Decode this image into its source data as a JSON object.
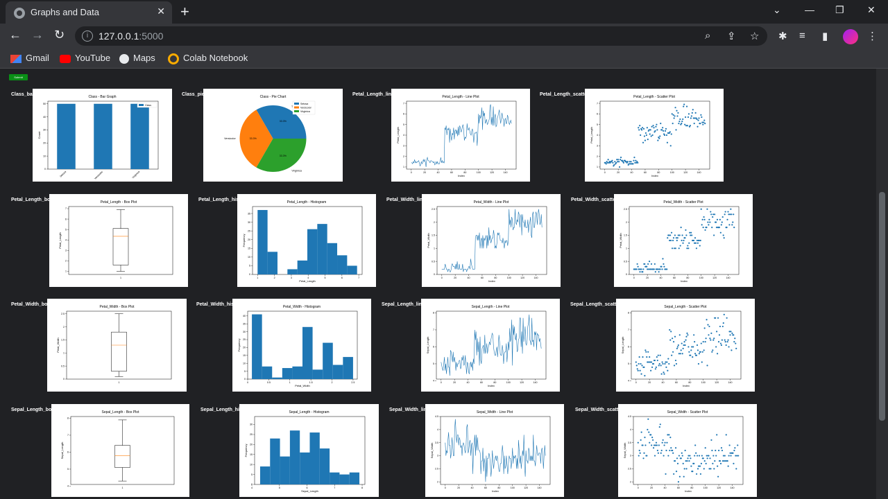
{
  "browser": {
    "tab_title": "Graphs and Data",
    "url_host": "127.0.0.1",
    "url_port": ":5000",
    "new_tab": "+",
    "close": "✕",
    "bookmarks": [
      {
        "label": "Gmail",
        "icon": "gmail-icon",
        "color": "#ea4335"
      },
      {
        "label": "YouTube",
        "icon": "youtube-icon",
        "color": "#ff0000"
      },
      {
        "label": "Maps",
        "icon": "maps-icon",
        "color": "#e8eaed"
      },
      {
        "label": "Colab Notebook",
        "icon": "colab-icon",
        "color": "#f9ab00"
      }
    ]
  },
  "page": {
    "submit_label": "Submit",
    "plot_color": "#1f77b4",
    "plots": [
      {
        "id": "Class_bar",
        "label": "Class_bar",
        "title": "Class - Bar Graph",
        "type": "bar",
        "categories": [
          "Setosa",
          "Versicolor",
          "Virginica"
        ],
        "values": [
          50,
          50,
          50
        ],
        "ylabel": "Count",
        "legend": "Class",
        "yticks": [
          0,
          10,
          20,
          30,
          40,
          50
        ],
        "ylim": [
          0,
          52
        ]
      },
      {
        "id": "Class_pie",
        "label": "Class_pie",
        "title": "Class - Pie Chart",
        "type": "pie",
        "slices": [
          {
            "name": "Setosa",
            "pct": "33.3%",
            "value": 33.3,
            "color": "#1f77b4"
          },
          {
            "name": "Versicolor",
            "pct": "33.3%",
            "value": 33.3,
            "color": "#ff7f0e"
          },
          {
            "name": "Virginica",
            "pct": "33.3%",
            "value": 33.3,
            "color": "#2ca02c"
          }
        ]
      },
      {
        "id": "Petal_Length_line",
        "label": "Petal_Length_line",
        "title": "Petal_Length - Line Plot",
        "type": "line",
        "xlabel": "Index",
        "ylabel": "Petal_Length",
        "ylim": [
          0.8,
          7.2
        ],
        "yticks": [
          1,
          2,
          3,
          4,
          5,
          6,
          7
        ],
        "xticks": [
          0,
          20,
          40,
          60,
          80,
          100,
          120,
          140
        ],
        "xlim": [
          -7,
          156
        ],
        "series": "PL"
      },
      {
        "id": "Petal_Length_scatter",
        "label": "Petal_Length_scatter",
        "title": "Petal_Length - Scatter Plot",
        "type": "scatter",
        "xlabel": "Index",
        "ylabel": "Petal_Length",
        "ylim": [
          0.8,
          7.2
        ],
        "yticks": [
          1,
          2,
          3,
          4,
          5,
          6,
          7
        ],
        "xticks": [
          0,
          20,
          40,
          60,
          80,
          100,
          120,
          140
        ],
        "xlim": [
          -7,
          156
        ],
        "series": "PL"
      },
      {
        "id": "Petal_Length_box",
        "label": "Petal_Length_box",
        "title": "Petal_Length - Box Plot",
        "type": "box",
        "xlabel": "",
        "ylabel": "Petal_Length",
        "ylim": [
          0.7,
          7.2
        ],
        "yticks": [
          1,
          2,
          3,
          4,
          5,
          6,
          7
        ],
        "box": {
          "min": 1.0,
          "q1": 1.6,
          "med": 4.35,
          "q3": 5.1,
          "max": 6.9,
          "out": []
        }
      },
      {
        "id": "Petal_Length_hist",
        "label": "Petal_Length_hist",
        "title": "Petal_Length - Histogram",
        "type": "hist",
        "xlabel": "Petal_Length",
        "ylabel": "Frequency",
        "ylim": [
          0,
          39
        ],
        "yticks": [
          0,
          5,
          10,
          15,
          20,
          25,
          30,
          35
        ],
        "xticks": [
          1,
          2,
          3,
          4,
          5,
          6,
          7
        ],
        "xlim": [
          0.7,
          7.2
        ],
        "bins": {
          "start": 1.0,
          "width": 0.59,
          "counts": [
            37,
            13,
            0,
            3,
            8,
            26,
            29,
            18,
            11,
            5
          ]
        }
      },
      {
        "id": "Petal_Width_line",
        "label": "Petal_Width_line",
        "title": "Petal_Width - Line Plot",
        "type": "line",
        "xlabel": "Index",
        "ylabel": "Petal_Width",
        "ylim": [
          0,
          2.6
        ],
        "yticks": [
          0.0,
          0.5,
          1.0,
          1.5,
          2.0,
          2.5
        ],
        "xticks": [
          0,
          20,
          40,
          60,
          80,
          100,
          120,
          140
        ],
        "xlim": [
          -7,
          156
        ],
        "series": "PW"
      },
      {
        "id": "Petal_Width_scatter",
        "label": "Petal_Width_scatter",
        "title": "Petal_Width - Scatter Plot",
        "type": "scatter",
        "xlabel": "Index",
        "ylabel": "Petal_Width",
        "ylim": [
          0,
          2.6
        ],
        "yticks": [
          0.0,
          0.5,
          1.0,
          1.5,
          2.0,
          2.5
        ],
        "xticks": [
          0,
          20,
          40,
          60,
          80,
          100,
          120,
          140
        ],
        "xlim": [
          -7,
          156
        ],
        "series": "PW"
      },
      {
        "id": "Petal_Width_box",
        "label": "Petal_Width_box",
        "title": "Petal_Width - Box Plot",
        "type": "box",
        "xlabel": "",
        "ylabel": "Petal_Width",
        "ylim": [
          0,
          2.6
        ],
        "yticks": [
          0.0,
          0.5,
          1.0,
          1.5,
          2.0,
          2.5
        ],
        "box": {
          "min": 0.1,
          "q1": 0.3,
          "med": 1.3,
          "q3": 1.8,
          "max": 2.5,
          "out": []
        }
      },
      {
        "id": "Petal_Width_hist",
        "label": "Petal_Width_hist",
        "title": "Petal_Width - Histogram",
        "type": "hist",
        "xlabel": "Petal_Width",
        "ylabel": "Frequency",
        "ylim": [
          0,
          43
        ],
        "yticks": [
          0,
          5,
          10,
          15,
          20,
          25,
          30,
          35,
          40
        ],
        "xticks": [
          0.0,
          0.5,
          1.0,
          1.5,
          2.0,
          2.5
        ],
        "xlim": [
          0,
          2.6
        ],
        "bins": {
          "start": 0.1,
          "width": 0.24,
          "counts": [
            41,
            8,
            1,
            7,
            8,
            33,
            6,
            23,
            9,
            14
          ]
        }
      },
      {
        "id": "Sepal_Length_line",
        "label": "Sepal_Length_line",
        "title": "Sepal_Length - Line Plot",
        "type": "line",
        "xlabel": "Index",
        "ylabel": "Sepal_Length",
        "ylim": [
          4.1,
          8.1
        ],
        "yticks": [
          4,
          5,
          6,
          7,
          8
        ],
        "xticks": [
          0,
          20,
          40,
          60,
          80,
          100,
          120,
          140
        ],
        "xlim": [
          -7,
          156
        ],
        "series": "SL"
      },
      {
        "id": "Sepal_Length_scatter",
        "label": "Sepal_Length_scatter",
        "title": "Sepal_Length - Scatter Plot",
        "type": "scatter",
        "xlabel": "Index",
        "ylabel": "Sepal_Length",
        "ylim": [
          4.1,
          8.1
        ],
        "yticks": [
          4,
          5,
          6,
          7,
          8
        ],
        "xticks": [
          0,
          20,
          40,
          60,
          80,
          100,
          120,
          140
        ],
        "xlim": [
          -7,
          156
        ],
        "series": "SL"
      },
      {
        "id": "Sepal_Length_box",
        "label": "Sepal_Length_box",
        "title": "Sepal_Length - Box Plot",
        "type": "box",
        "xlabel": "",
        "ylabel": "Sepal_Length",
        "ylim": [
          4.1,
          8.1
        ],
        "yticks": [
          4,
          5,
          6,
          7,
          8
        ],
        "box": {
          "min": 4.3,
          "q1": 5.1,
          "med": 5.8,
          "q3": 6.4,
          "max": 7.9,
          "out": []
        }
      },
      {
        "id": "Sepal_Length_hist",
        "label": "Sepal_Length_hist",
        "title": "Sepal_Length - Histogram",
        "type": "hist",
        "xlabel": "Sepal_Length",
        "ylabel": "Frequency",
        "ylim": [
          0,
          34
        ],
        "yticks": [
          0,
          5,
          10,
          15,
          20,
          25,
          30
        ],
        "xticks": [
          4,
          5,
          6,
          7,
          8
        ],
        "xlim": [
          4.1,
          8.1
        ],
        "bins": {
          "start": 4.3,
          "width": 0.36,
          "counts": [
            9,
            23,
            14,
            27,
            16,
            26,
            18,
            6,
            5,
            6
          ]
        }
      },
      {
        "id": "Sepal_Width_line",
        "label": "Sepal_Width_line",
        "title": "Sepal_Width - Line Plot",
        "type": "line",
        "xlabel": "Index",
        "ylabel": "Sepal_Width",
        "ylim": [
          1.9,
          4.5
        ],
        "yticks": [
          2.0,
          2.5,
          3.0,
          3.5,
          4.0,
          4.5
        ],
        "xticks": [
          0,
          20,
          40,
          60,
          80,
          100,
          120,
          140
        ],
        "xlim": [
          -7,
          156
        ],
        "series": "SW"
      },
      {
        "id": "Sepal_Width_scatter",
        "label": "Sepal_Width_scatter",
        "title": "Sepal_Width - Scatter Plot",
        "type": "scatter",
        "xlabel": "Index",
        "ylabel": "Sepal_Width",
        "ylim": [
          1.9,
          4.5
        ],
        "yticks": [
          2.0,
          2.5,
          3.0,
          3.5,
          4.0,
          4.5
        ],
        "xticks": [
          0,
          20,
          40,
          60,
          80,
          100,
          120,
          140
        ],
        "xlim": [
          -7,
          156
        ],
        "series": "SW"
      }
    ]
  },
  "iris": {
    "PL": [
      1.4,
      1.4,
      1.3,
      1.5,
      1.4,
      1.7,
      1.4,
      1.5,
      1.4,
      1.5,
      1.5,
      1.6,
      1.4,
      1.1,
      1.2,
      1.5,
      1.3,
      1.4,
      1.7,
      1.5,
      1.7,
      1.5,
      1.0,
      1.7,
      1.9,
      1.6,
      1.6,
      1.5,
      1.4,
      1.6,
      1.6,
      1.5,
      1.5,
      1.4,
      1.5,
      1.2,
      1.3,
      1.5,
      1.3,
      1.5,
      1.3,
      1.3,
      1.3,
      1.6,
      1.9,
      1.4,
      1.6,
      1.4,
      1.5,
      1.4,
      4.7,
      4.5,
      4.9,
      4.0,
      4.6,
      4.5,
      4.7,
      3.3,
      4.6,
      3.9,
      3.5,
      4.2,
      4.0,
      4.7,
      3.6,
      4.4,
      4.5,
      4.1,
      4.5,
      3.9,
      4.8,
      4.0,
      4.9,
      4.7,
      4.3,
      4.4,
      4.8,
      5.0,
      4.5,
      3.5,
      3.8,
      3.7,
      3.9,
      5.1,
      4.5,
      4.5,
      4.7,
      4.4,
      4.1,
      4.0,
      4.4,
      4.6,
      4.0,
      3.3,
      4.2,
      4.2,
      4.2,
      4.3,
      3.0,
      4.1,
      6.0,
      5.1,
      5.9,
      5.6,
      5.8,
      6.6,
      4.5,
      6.3,
      5.8,
      6.1,
      5.1,
      5.3,
      5.5,
      5.0,
      5.1,
      5.3,
      5.5,
      6.7,
      6.9,
      5.0,
      5.7,
      4.9,
      6.7,
      4.9,
      5.7,
      6.0,
      4.8,
      4.9,
      5.6,
      5.8,
      6.1,
      6.4,
      5.6,
      5.1,
      5.6,
      6.1,
      5.6,
      5.5,
      4.8,
      5.4,
      5.6,
      5.1,
      5.1,
      5.9,
      5.7,
      5.2,
      5.0,
      5.2,
      5.4,
      5.1
    ],
    "PW": [
      0.2,
      0.2,
      0.2,
      0.2,
      0.2,
      0.4,
      0.3,
      0.2,
      0.2,
      0.1,
      0.2,
      0.2,
      0.1,
      0.1,
      0.2,
      0.4,
      0.4,
      0.3,
      0.3,
      0.3,
      0.2,
      0.4,
      0.2,
      0.5,
      0.2,
      0.2,
      0.4,
      0.2,
      0.2,
      0.2,
      0.2,
      0.4,
      0.1,
      0.2,
      0.2,
      0.2,
      0.2,
      0.1,
      0.2,
      0.2,
      0.3,
      0.3,
      0.2,
      0.6,
      0.4,
      0.3,
      0.2,
      0.2,
      0.2,
      0.2,
      1.4,
      1.5,
      1.5,
      1.3,
      1.5,
      1.3,
      1.6,
      1.0,
      1.3,
      1.4,
      1.0,
      1.5,
      1.0,
      1.4,
      1.3,
      1.4,
      1.5,
      1.0,
      1.5,
      1.1,
      1.8,
      1.3,
      1.5,
      1.2,
      1.3,
      1.4,
      1.4,
      1.7,
      1.5,
      1.0,
      1.1,
      1.0,
      1.2,
      1.6,
      1.5,
      1.6,
      1.5,
      1.3,
      1.3,
      1.3,
      1.2,
      1.4,
      1.2,
      1.0,
      1.3,
      1.2,
      1.3,
      1.3,
      1.1,
      1.3,
      2.5,
      1.9,
      2.1,
      1.8,
      2.2,
      2.1,
      1.7,
      1.8,
      1.8,
      2.5,
      2.0,
      1.9,
      2.1,
      2.0,
      2.4,
      2.3,
      1.8,
      2.2,
      2.3,
      1.5,
      2.3,
      2.0,
      2.0,
      1.8,
      2.1,
      1.8,
      1.8,
      1.8,
      2.1,
      1.6,
      1.9,
      2.0,
      2.2,
      1.5,
      1.4,
      2.3,
      2.4,
      1.8,
      1.8,
      2.1,
      2.4,
      2.3,
      1.9,
      2.3,
      2.5,
      2.3,
      1.9,
      2.0,
      2.3,
      1.8
    ],
    "SL": [
      5.1,
      4.9,
      4.7,
      4.6,
      5.0,
      5.4,
      4.6,
      5.0,
      4.4,
      4.9,
      5.4,
      4.8,
      4.8,
      4.3,
      5.8,
      5.7,
      5.4,
      5.1,
      5.7,
      5.1,
      5.4,
      5.1,
      4.6,
      5.1,
      4.8,
      5.0,
      5.0,
      5.2,
      5.2,
      4.7,
      4.8,
      5.4,
      5.2,
      5.5,
      4.9,
      5.0,
      5.5,
      4.9,
      4.4,
      5.1,
      5.0,
      4.5,
      4.4,
      5.0,
      5.1,
      4.8,
      5.1,
      4.6,
      5.3,
      5.0,
      7.0,
      6.4,
      6.9,
      5.5,
      6.5,
      5.7,
      6.3,
      4.9,
      6.6,
      5.2,
      5.0,
      5.9,
      6.0,
      6.1,
      5.6,
      6.7,
      5.6,
      5.8,
      6.2,
      5.6,
      5.9,
      6.1,
      6.3,
      6.1,
      6.4,
      6.6,
      6.8,
      6.7,
      6.0,
      5.7,
      5.5,
      5.5,
      5.8,
      6.0,
      5.4,
      6.0,
      6.7,
      6.3,
      5.6,
      5.5,
      5.5,
      6.1,
      5.8,
      5.0,
      5.6,
      5.7,
      5.7,
      6.2,
      5.1,
      5.7,
      6.3,
      5.8,
      7.1,
      6.3,
      6.5,
      7.6,
      4.9,
      7.3,
      6.7,
      7.2,
      6.5,
      6.4,
      6.8,
      5.7,
      5.8,
      6.4,
      6.5,
      7.7,
      7.7,
      6.0,
      6.9,
      5.6,
      7.7,
      6.3,
      6.7,
      7.2,
      6.2,
      6.1,
      6.4,
      7.2,
      7.4,
      7.9,
      6.4,
      6.3,
      6.1,
      7.7,
      6.3,
      6.4,
      6.0,
      6.9,
      6.7,
      6.9,
      5.8,
      6.8,
      6.7,
      6.7,
      6.3,
      6.5,
      6.2,
      5.9
    ],
    "SW": [
      3.5,
      3.0,
      3.2,
      3.1,
      3.6,
      3.9,
      3.4,
      3.4,
      2.9,
      3.1,
      3.7,
      3.4,
      3.0,
      3.0,
      4.0,
      4.4,
      3.9,
      3.5,
      3.8,
      3.8,
      3.4,
      3.7,
      3.6,
      3.3,
      3.4,
      3.0,
      3.4,
      3.5,
      3.4,
      3.2,
      3.1,
      3.4,
      4.1,
      4.2,
      3.1,
      3.2,
      3.5,
      3.6,
      3.0,
      3.4,
      3.5,
      2.3,
      3.2,
      3.5,
      3.8,
      3.0,
      3.8,
      3.2,
      3.7,
      3.3,
      3.2,
      3.2,
      3.1,
      2.3,
      2.8,
      2.8,
      3.3,
      2.4,
      2.9,
      2.7,
      2.0,
      3.0,
      2.2,
      2.9,
      2.9,
      3.1,
      3.0,
      2.7,
      2.2,
      2.5,
      3.2,
      2.8,
      2.5,
      2.8,
      2.9,
      3.0,
      2.8,
      3.0,
      2.9,
      2.6,
      2.4,
      2.4,
      2.7,
      2.7,
      3.0,
      3.4,
      3.1,
      2.3,
      3.0,
      2.5,
      2.6,
      3.0,
      2.6,
      2.3,
      2.7,
      3.0,
      2.9,
      2.9,
      2.5,
      2.8,
      3.3,
      2.7,
      3.0,
      2.9,
      3.0,
      3.0,
      2.5,
      2.9,
      2.5,
      3.6,
      3.2,
      2.7,
      3.0,
      2.5,
      2.8,
      3.2,
      3.0,
      3.8,
      2.6,
      2.2,
      3.2,
      2.8,
      2.8,
      2.7,
      3.3,
      3.2,
      2.8,
      3.0,
      2.8,
      3.0,
      2.8,
      3.8,
      2.8,
      2.8,
      2.6,
      3.0,
      3.4,
      3.1,
      3.0,
      3.1,
      3.1,
      3.1,
      2.7,
      3.2,
      3.3,
      3.0,
      2.5,
      3.0,
      3.4,
      3.0
    ]
  }
}
